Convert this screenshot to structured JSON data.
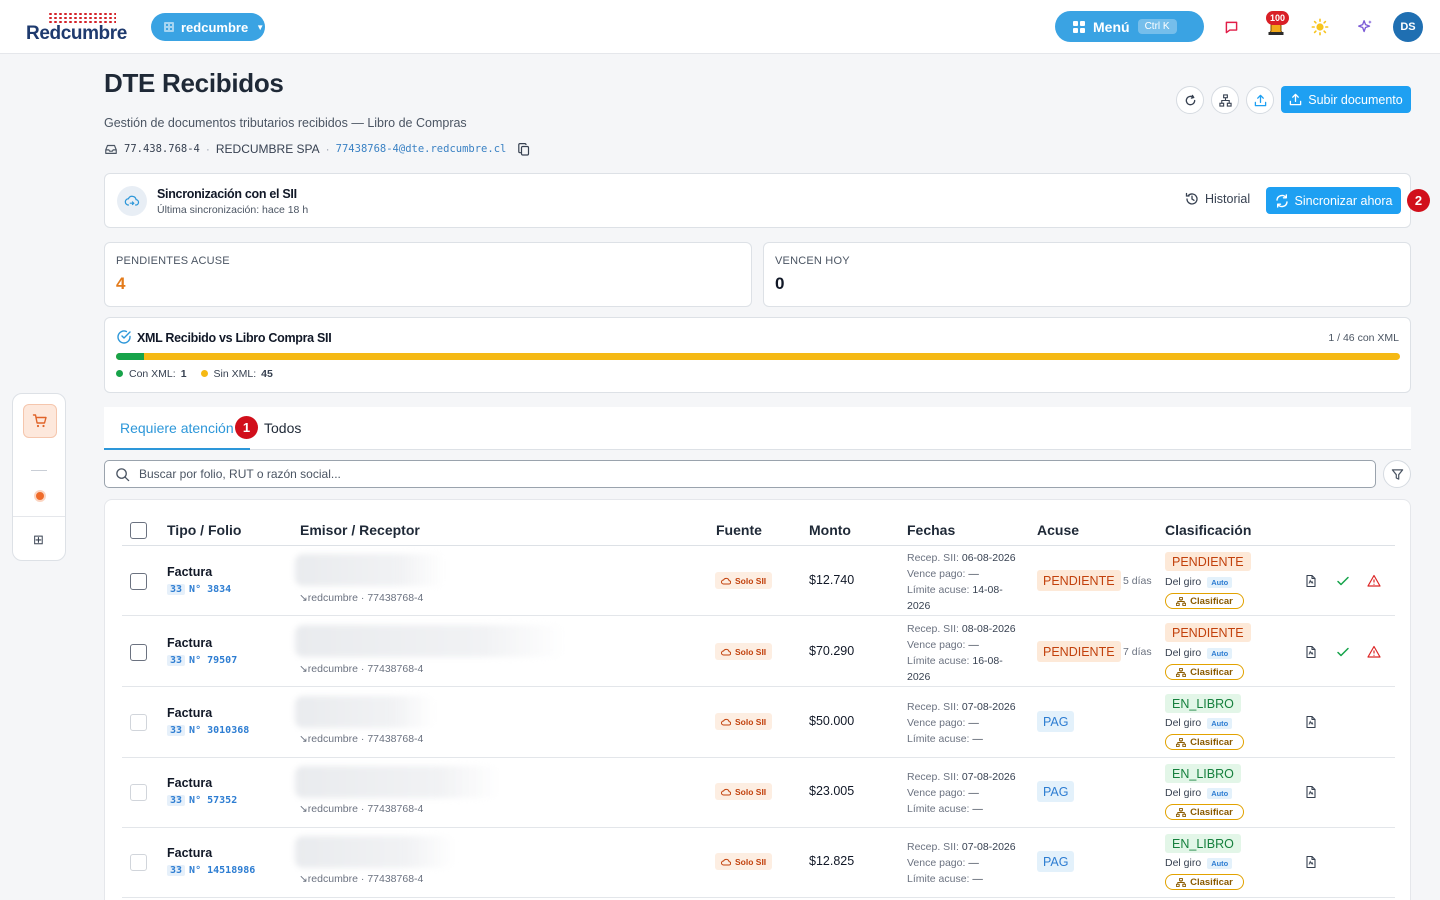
{
  "topbar": {
    "logo_text": "Redcumbre",
    "org_name": "redcumbre",
    "menu_label": "Menú",
    "menu_shortcut": "Ctrl K",
    "notifications_count": "100",
    "avatar_initials": "DS"
  },
  "header": {
    "title": "DTE Recibidos",
    "subtitle": "Gestión de documentos tributarios recibidos — Libro de Compras",
    "rut": "77.438.768-4",
    "company": "REDCUMBRE SPA",
    "email": "77438768-4@dte.redcumbre.cl",
    "upload_label": "Subir documento"
  },
  "sync": {
    "title": "Sincronización con el SII",
    "subtitle": "Última sincronización: hace 18 h",
    "history_label": "Historial",
    "sync_label": "Sincronizar ahora",
    "marker": "2"
  },
  "stats": [
    {
      "label": "PENDIENTES ACUSE",
      "value": "4",
      "color": "#e37b1b"
    },
    {
      "label": "VENCEN HOY",
      "value": "0",
      "color": "#111827"
    }
  ],
  "xml": {
    "title": "XML Recibido vs Libro Compra SII",
    "summary": "1 / 46 con XML",
    "with_xml": 1,
    "total": 46,
    "legend_with_label": "Con XML:",
    "legend_with_value": "1",
    "legend_without_label": "Sin XML:",
    "legend_without_value": "45",
    "color_with": "#17a34a",
    "color_without": "#f5b914"
  },
  "tabs": {
    "active": "Requiere atención",
    "marker": "1",
    "other": "Todos"
  },
  "search": {
    "placeholder": "Buscar por folio, RUT o razón social..."
  },
  "table": {
    "columns": [
      "Tipo / Folio",
      "Emisor / Receptor",
      "Fuente",
      "Monto",
      "Fechas",
      "Acuse",
      "Clasificación"
    ],
    "rows": [
      {
        "tipo": "Factura",
        "code": "33",
        "folio": "N° 3834",
        "emisor": "↘redcumbre · 77438768-4",
        "fuente": "Solo SII",
        "monto": "$12.740",
        "recep_label": "Recep. SII:",
        "recep": "06-08-2026",
        "vence_label": "Vence pago:",
        "vence": "—",
        "limite_label": "Límite acuse:",
        "limite": "14-08-2026",
        "acuse": "PENDIENTE",
        "dias": "5 días",
        "clasificacion": "PENDIENTE",
        "giro": "Del giro",
        "auto": "Auto",
        "clasificar": "Clasificar"
      },
      {
        "tipo": "Factura",
        "code": "33",
        "folio": "N° 79507",
        "emisor": "↘redcumbre · 77438768-4",
        "fuente": "Solo SII",
        "monto": "$70.290",
        "recep_label": "Recep. SII:",
        "recep": "08-08-2026",
        "vence_label": "Vence pago:",
        "vence": "—",
        "limite_label": "Límite acuse:",
        "limite": "16-08-2026",
        "acuse": "PENDIENTE",
        "dias": "7 días",
        "clasificacion": "PENDIENTE",
        "giro": "Del giro",
        "auto": "Auto",
        "clasificar": "Clasificar"
      },
      {
        "tipo": "Factura",
        "code": "33",
        "folio": "N° 3010368",
        "emisor": "↘redcumbre · 77438768-4",
        "fuente": "Solo SII",
        "monto": "$50.000",
        "recep_label": "Recep. SII:",
        "recep": "07-08-2026",
        "vence_label": "Vence pago:",
        "vence": "—",
        "limite_label": "Límite acuse:",
        "limite": "—",
        "acuse": "PAG",
        "dias": "",
        "clasificacion": "EN_LIBRO",
        "giro": "Del giro",
        "auto": "Auto",
        "clasificar": "Clasificar"
      },
      {
        "tipo": "Factura",
        "code": "33",
        "folio": "N° 57352",
        "emisor": "↘redcumbre · 77438768-4",
        "fuente": "Solo SII",
        "monto": "$23.005",
        "recep_label": "Recep. SII:",
        "recep": "07-08-2026",
        "vence_label": "Vence pago:",
        "vence": "—",
        "limite_label": "Límite acuse:",
        "limite": "—",
        "acuse": "PAG",
        "dias": "",
        "clasificacion": "EN_LIBRO",
        "giro": "Del giro",
        "auto": "Auto",
        "clasificar": "Clasificar"
      },
      {
        "tipo": "Factura",
        "code": "33",
        "folio": "N° 14518986",
        "emisor": "↘redcumbre · 77438768-4",
        "fuente": "Solo SII",
        "monto": "$12.825",
        "recep_label": "Recep. SII:",
        "recep": "07-08-2026",
        "vence_label": "Vence pago:",
        "vence": "—",
        "limite_label": "Límite acuse:",
        "limite": "—",
        "acuse": "PAG",
        "dias": "",
        "clasificacion": "EN_LIBRO",
        "giro": "Del giro",
        "auto": "Auto",
        "clasificar": "Clasificar"
      }
    ]
  }
}
